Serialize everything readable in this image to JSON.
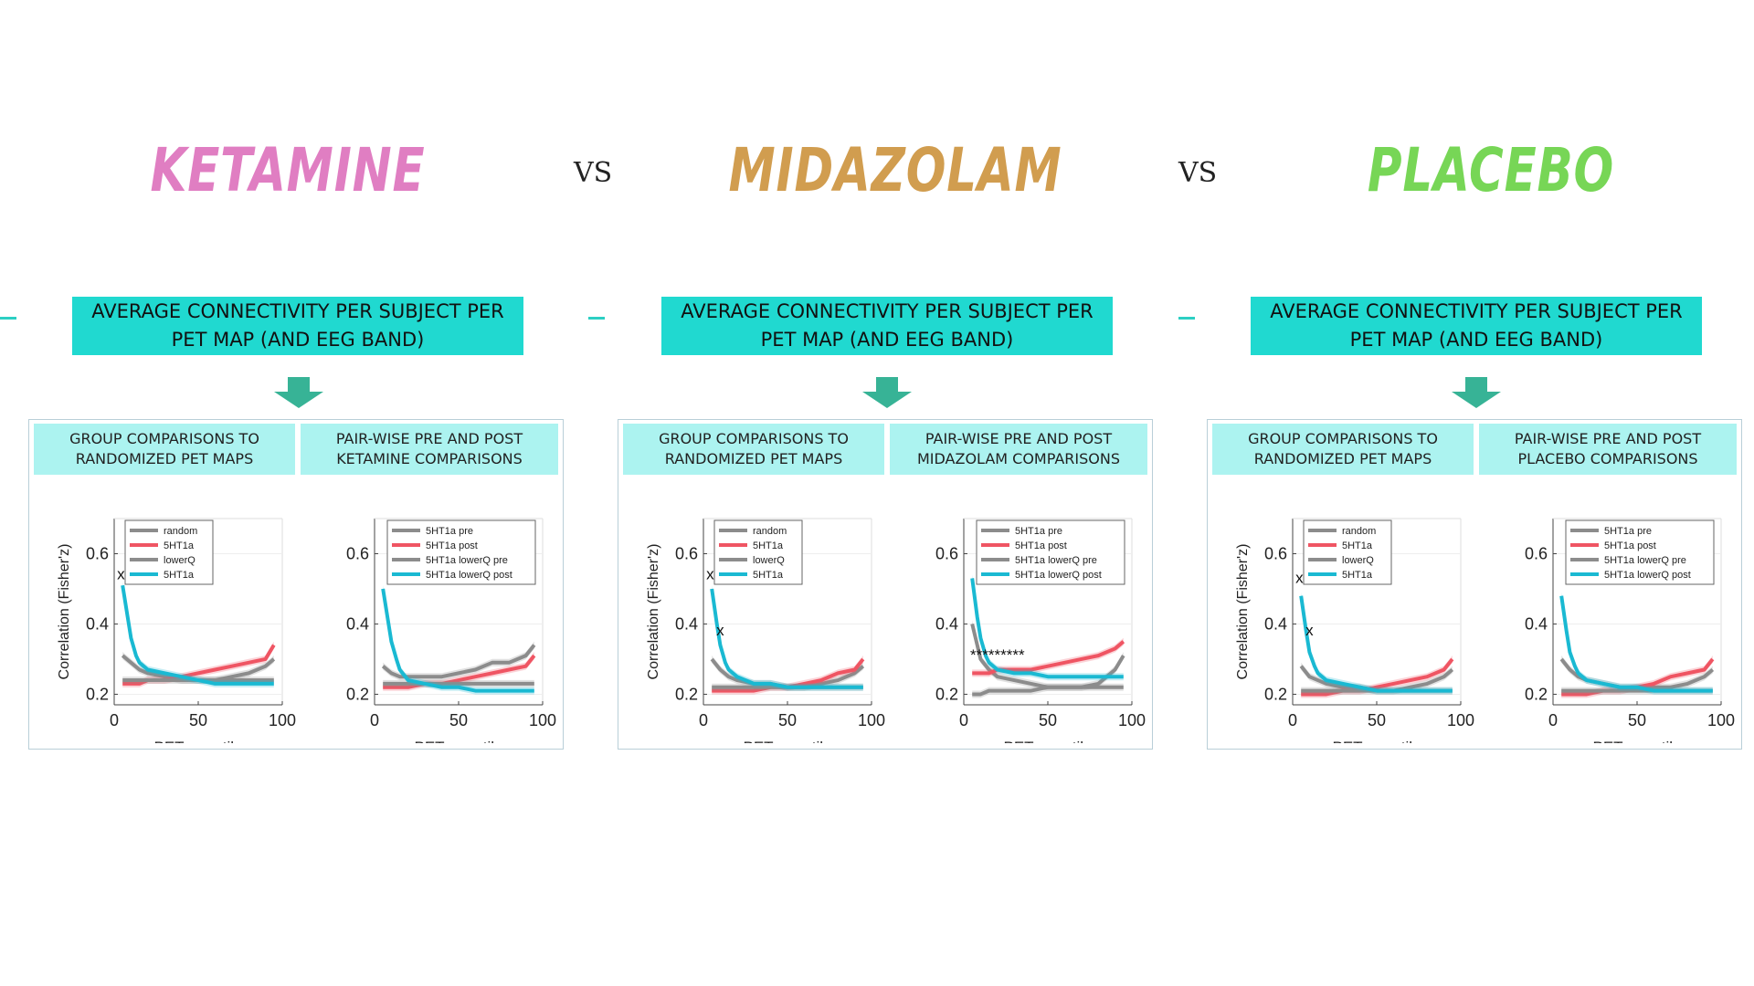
{
  "title": {
    "drugs": [
      {
        "label": "KETAMINE",
        "color": "#e07ec2"
      },
      {
        "label": "MIDAZOLAM",
        "color": "#d19d4f"
      },
      {
        "label": "PLACEBO",
        "color": "#77d656"
      }
    ],
    "vs": "VS"
  },
  "colors": {
    "accent_box": "#20d9d0",
    "subheader": "#acf3f0",
    "arrow": "#37b396",
    "series_gray": "#8c8c8c",
    "series_red": "#ef5563",
    "series_cyan": "#1ab9d2"
  },
  "columns": [
    {
      "header": "AVERAGE CONNECTIVITY PER SUBJECT PER PET MAP (AND EEG BAND)",
      "left_subheader": "GROUP COMPARISONS TO RANDOMIZED PET MAPS",
      "right_subheader": "PAIR-WISE PRE AND POST KETAMINE COMPARISONS"
    },
    {
      "header": "AVERAGE CONNECTIVITY PER SUBJECT PER PET MAP (AND EEG BAND)",
      "left_subheader": "GROUP COMPARISONS TO RANDOMIZED PET MAPS",
      "right_subheader": "PAIR-WISE PRE AND POST MIDAZOLAM COMPARISONS"
    },
    {
      "header": "AVERAGE CONNECTIVITY PER SUBJECT PER PET MAP (AND EEG BAND)",
      "left_subheader": "GROUP COMPARISONS TO RANDOMIZED PET MAPS",
      "right_subheader": "PAIR-WISE PRE AND POST PLACEBO COMPARISONS"
    }
  ],
  "chart_data": [
    {
      "type": "line",
      "ylabel": "Correlation (Fisher'z)",
      "xlabel": "PET quantile",
      "xlim": [
        0,
        100
      ],
      "ylim": [
        0.17,
        0.7
      ],
      "xticks": [
        0,
        50,
        100
      ],
      "yticks": [
        0.2,
        0.4,
        0.6
      ],
      "legend": "top-left",
      "markers": [
        {
          "text": "x",
          "x": 4,
          "y": 0.54
        }
      ],
      "series": [
        {
          "name": "random",
          "color": "#8c8c8c",
          "x": [
            5,
            10,
            15,
            20,
            30,
            40,
            50,
            60,
            70,
            80,
            90,
            95
          ],
          "values": [
            0.31,
            0.29,
            0.27,
            0.26,
            0.25,
            0.24,
            0.24,
            0.24,
            0.25,
            0.26,
            0.28,
            0.3
          ]
        },
        {
          "name": "5HT1a",
          "color": "#ef5563",
          "x": [
            5,
            10,
            15,
            20,
            30,
            40,
            50,
            60,
            70,
            80,
            90,
            95
          ],
          "values": [
            0.23,
            0.23,
            0.23,
            0.24,
            0.24,
            0.25,
            0.26,
            0.27,
            0.28,
            0.29,
            0.3,
            0.34
          ]
        },
        {
          "name": "lowerQ",
          "color": "#8c8c8c",
          "x": [
            5,
            10,
            15,
            20,
            30,
            40,
            50,
            60,
            70,
            80,
            90,
            95
          ],
          "values": [
            0.24,
            0.24,
            0.24,
            0.24,
            0.24,
            0.24,
            0.24,
            0.24,
            0.24,
            0.24,
            0.24,
            0.24
          ]
        },
        {
          "name": "5HT1a",
          "color": "#1ab9d2",
          "x": [
            5,
            8,
            10,
            13,
            15,
            20,
            30,
            40,
            50,
            60,
            70,
            80,
            90,
            95
          ],
          "values": [
            0.51,
            0.42,
            0.36,
            0.31,
            0.29,
            0.27,
            0.26,
            0.25,
            0.24,
            0.23,
            0.23,
            0.23,
            0.23,
            0.23
          ]
        }
      ]
    },
    {
      "type": "line",
      "ylabel": "",
      "xlabel": "PET quantile",
      "xlim": [
        0,
        100
      ],
      "ylim": [
        0.17,
        0.7
      ],
      "xticks": [
        0,
        50,
        100
      ],
      "yticks": [
        0.2,
        0.4,
        0.6
      ],
      "legend": "top-right",
      "markers": [],
      "series": [
        {
          "name": "5HT1a pre",
          "color": "#8c8c8c",
          "x": [
            5,
            10,
            15,
            20,
            30,
            40,
            50,
            60,
            70,
            80,
            90,
            95
          ],
          "values": [
            0.28,
            0.26,
            0.25,
            0.25,
            0.25,
            0.25,
            0.26,
            0.27,
            0.29,
            0.29,
            0.31,
            0.34
          ]
        },
        {
          "name": "5HT1a post",
          "color": "#ef5563",
          "x": [
            5,
            10,
            15,
            20,
            30,
            40,
            50,
            60,
            70,
            80,
            90,
            95
          ],
          "values": [
            0.22,
            0.22,
            0.22,
            0.22,
            0.23,
            0.23,
            0.24,
            0.25,
            0.26,
            0.27,
            0.28,
            0.31
          ]
        },
        {
          "name": "5HT1a lowerQ pre",
          "color": "#8c8c8c",
          "x": [
            5,
            10,
            15,
            20,
            30,
            40,
            50,
            60,
            70,
            80,
            90,
            95
          ],
          "values": [
            0.23,
            0.23,
            0.23,
            0.23,
            0.23,
            0.23,
            0.23,
            0.23,
            0.23,
            0.23,
            0.23,
            0.23
          ]
        },
        {
          "name": "5HT1a lowerQ post",
          "color": "#1ab9d2",
          "x": [
            5,
            8,
            10,
            13,
            15,
            20,
            30,
            40,
            50,
            60,
            70,
            80,
            90,
            95
          ],
          "values": [
            0.5,
            0.41,
            0.35,
            0.3,
            0.27,
            0.24,
            0.23,
            0.22,
            0.22,
            0.21,
            0.21,
            0.21,
            0.21,
            0.21
          ]
        }
      ]
    },
    {
      "type": "line",
      "ylabel": "Correlation (Fisher'z)",
      "xlabel": "PET quantile",
      "xlim": [
        0,
        100
      ],
      "ylim": [
        0.17,
        0.7
      ],
      "xticks": [
        0,
        50,
        100
      ],
      "yticks": [
        0.2,
        0.4,
        0.6
      ],
      "legend": "top-left",
      "markers": [
        {
          "text": "x",
          "x": 4,
          "y": 0.54
        },
        {
          "text": "x",
          "x": 10,
          "y": 0.38
        }
      ],
      "series": [
        {
          "name": "random",
          "color": "#8c8c8c",
          "x": [
            5,
            10,
            15,
            20,
            30,
            40,
            50,
            60,
            70,
            80,
            90,
            95
          ],
          "values": [
            0.3,
            0.27,
            0.25,
            0.24,
            0.23,
            0.23,
            0.22,
            0.22,
            0.23,
            0.24,
            0.26,
            0.28
          ]
        },
        {
          "name": "5HT1a",
          "color": "#ef5563",
          "x": [
            5,
            10,
            15,
            20,
            30,
            40,
            50,
            60,
            70,
            80,
            90,
            95
          ],
          "values": [
            0.21,
            0.21,
            0.21,
            0.21,
            0.21,
            0.22,
            0.22,
            0.23,
            0.24,
            0.26,
            0.27,
            0.3
          ]
        },
        {
          "name": "lowerQ",
          "color": "#8c8c8c",
          "x": [
            5,
            10,
            15,
            20,
            30,
            40,
            50,
            60,
            70,
            80,
            90,
            95
          ],
          "values": [
            0.22,
            0.22,
            0.22,
            0.22,
            0.22,
            0.22,
            0.22,
            0.22,
            0.22,
            0.22,
            0.22,
            0.22
          ]
        },
        {
          "name": "5HT1a",
          "color": "#1ab9d2",
          "x": [
            5,
            8,
            10,
            13,
            15,
            20,
            30,
            40,
            50,
            60,
            70,
            80,
            90,
            95
          ],
          "values": [
            0.5,
            0.4,
            0.34,
            0.29,
            0.27,
            0.25,
            0.23,
            0.23,
            0.22,
            0.22,
            0.22,
            0.22,
            0.22,
            0.22
          ]
        }
      ]
    },
    {
      "type": "line",
      "ylabel": "",
      "xlabel": "PET quantile",
      "xlim": [
        0,
        100
      ],
      "ylim": [
        0.17,
        0.7
      ],
      "xticks": [
        0,
        50,
        100
      ],
      "yticks": [
        0.2,
        0.4,
        0.6
      ],
      "legend": "top-right",
      "markers": [
        {
          "text": "*********",
          "x": 20,
          "y": 0.31
        }
      ],
      "series": [
        {
          "name": "5HT1a pre",
          "color": "#8c8c8c",
          "x": [
            5,
            10,
            15,
            20,
            30,
            40,
            50,
            60,
            70,
            80,
            90,
            95
          ],
          "values": [
            0.4,
            0.3,
            0.27,
            0.25,
            0.24,
            0.23,
            0.22,
            0.22,
            0.22,
            0.23,
            0.27,
            0.31
          ]
        },
        {
          "name": "5HT1a post",
          "color": "#ef5563",
          "x": [
            5,
            10,
            15,
            20,
            30,
            40,
            50,
            60,
            70,
            80,
            90,
            95
          ],
          "values": [
            0.26,
            0.26,
            0.26,
            0.27,
            0.27,
            0.27,
            0.28,
            0.29,
            0.3,
            0.31,
            0.33,
            0.35
          ]
        },
        {
          "name": "5HT1a lowerQ pre",
          "color": "#8c8c8c",
          "x": [
            5,
            10,
            15,
            20,
            30,
            40,
            50,
            60,
            70,
            80,
            90,
            95
          ],
          "values": [
            0.2,
            0.2,
            0.21,
            0.21,
            0.21,
            0.21,
            0.22,
            0.22,
            0.22,
            0.22,
            0.22,
            0.22
          ]
        },
        {
          "name": "5HT1a lowerQ post",
          "color": "#1ab9d2",
          "x": [
            5,
            8,
            10,
            13,
            15,
            20,
            30,
            40,
            50,
            60,
            70,
            80,
            90,
            95
          ],
          "values": [
            0.53,
            0.42,
            0.36,
            0.31,
            0.29,
            0.27,
            0.26,
            0.26,
            0.25,
            0.25,
            0.25,
            0.25,
            0.25,
            0.25
          ]
        }
      ]
    },
    {
      "type": "line",
      "ylabel": "Correlation (Fisher'z)",
      "xlabel": "PET quantile",
      "xlim": [
        0,
        100
      ],
      "ylim": [
        0.17,
        0.7
      ],
      "xticks": [
        0,
        50,
        100
      ],
      "yticks": [
        0.2,
        0.4,
        0.6
      ],
      "legend": "top-left",
      "markers": [
        {
          "text": "x",
          "x": 4,
          "y": 0.53
        },
        {
          "text": "x",
          "x": 10,
          "y": 0.38
        }
      ],
      "series": [
        {
          "name": "random",
          "color": "#8c8c8c",
          "x": [
            5,
            10,
            15,
            20,
            30,
            40,
            50,
            60,
            70,
            80,
            90,
            95
          ],
          "values": [
            0.28,
            0.25,
            0.24,
            0.23,
            0.22,
            0.22,
            0.21,
            0.21,
            0.22,
            0.23,
            0.25,
            0.27
          ]
        },
        {
          "name": "5HT1a",
          "color": "#ef5563",
          "x": [
            5,
            10,
            15,
            20,
            30,
            40,
            50,
            60,
            70,
            80,
            90,
            95
          ],
          "values": [
            0.2,
            0.2,
            0.2,
            0.2,
            0.21,
            0.21,
            0.22,
            0.23,
            0.24,
            0.25,
            0.27,
            0.3
          ]
        },
        {
          "name": "lowerQ",
          "color": "#8c8c8c",
          "x": [
            5,
            10,
            15,
            20,
            30,
            40,
            50,
            60,
            70,
            80,
            90,
            95
          ],
          "values": [
            0.21,
            0.21,
            0.21,
            0.21,
            0.21,
            0.21,
            0.21,
            0.21,
            0.21,
            0.21,
            0.21,
            0.21
          ]
        },
        {
          "name": "5HT1a",
          "color": "#1ab9d2",
          "x": [
            5,
            8,
            10,
            13,
            15,
            20,
            30,
            40,
            50,
            60,
            70,
            80,
            90,
            95
          ],
          "values": [
            0.48,
            0.38,
            0.32,
            0.28,
            0.26,
            0.24,
            0.23,
            0.22,
            0.21,
            0.21,
            0.21,
            0.21,
            0.21,
            0.21
          ]
        }
      ]
    },
    {
      "type": "line",
      "ylabel": "",
      "xlabel": "PET quantile",
      "xlim": [
        0,
        100
      ],
      "ylim": [
        0.17,
        0.7
      ],
      "xticks": [
        0,
        50,
        100
      ],
      "yticks": [
        0.2,
        0.4,
        0.6
      ],
      "legend": "top-right",
      "markers": [],
      "series": [
        {
          "name": "5HT1a pre",
          "color": "#8c8c8c",
          "x": [
            5,
            10,
            15,
            20,
            30,
            40,
            50,
            60,
            70,
            80,
            90,
            95
          ],
          "values": [
            0.3,
            0.27,
            0.25,
            0.24,
            0.23,
            0.22,
            0.22,
            0.22,
            0.22,
            0.23,
            0.25,
            0.27
          ]
        },
        {
          "name": "5HT1a post",
          "color": "#ef5563",
          "x": [
            5,
            10,
            15,
            20,
            30,
            40,
            50,
            60,
            70,
            80,
            90,
            95
          ],
          "values": [
            0.2,
            0.2,
            0.2,
            0.2,
            0.21,
            0.21,
            0.22,
            0.23,
            0.25,
            0.26,
            0.27,
            0.3
          ]
        },
        {
          "name": "5HT1a lowerQ pre",
          "color": "#8c8c8c",
          "x": [
            5,
            10,
            15,
            20,
            30,
            40,
            50,
            60,
            70,
            80,
            90,
            95
          ],
          "values": [
            0.21,
            0.21,
            0.21,
            0.21,
            0.21,
            0.21,
            0.21,
            0.21,
            0.21,
            0.21,
            0.21,
            0.21
          ]
        },
        {
          "name": "5HT1a lowerQ post",
          "color": "#1ab9d2",
          "x": [
            5,
            8,
            10,
            13,
            15,
            20,
            30,
            40,
            50,
            60,
            70,
            80,
            90,
            95
          ],
          "values": [
            0.48,
            0.38,
            0.32,
            0.28,
            0.26,
            0.24,
            0.23,
            0.22,
            0.22,
            0.21,
            0.21,
            0.21,
            0.21,
            0.21
          ]
        }
      ]
    }
  ]
}
